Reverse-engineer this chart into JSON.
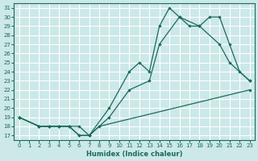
{
  "xlabel": "Humidex (Indice chaleur)",
  "ylabel": "",
  "bg_color": "#cce8e8",
  "grid_color": "#ffffff",
  "line_color": "#1a6b5a",
  "xlim": [
    -0.5,
    23.5
  ],
  "ylim": [
    16.5,
    31.5
  ],
  "xticks": [
    0,
    1,
    2,
    3,
    4,
    5,
    6,
    7,
    8,
    9,
    10,
    11,
    12,
    13,
    14,
    15,
    16,
    17,
    18,
    19,
    20,
    21,
    22,
    23
  ],
  "yticks": [
    17,
    18,
    19,
    20,
    21,
    22,
    23,
    24,
    25,
    26,
    27,
    28,
    29,
    30,
    31
  ],
  "line1_x": [
    0,
    2,
    3,
    4,
    5,
    6,
    7,
    8,
    23
  ],
  "line1_y": [
    19,
    18,
    18,
    18,
    18,
    17,
    17,
    18,
    22
  ],
  "line2_x": [
    0,
    2,
    3,
    4,
    5,
    6,
    7,
    9,
    11,
    13,
    14,
    16,
    18,
    20,
    21,
    23
  ],
  "line2_y": [
    19,
    18,
    18,
    18,
    18,
    18,
    17,
    19,
    22,
    23,
    27,
    30,
    29,
    27,
    25,
    23
  ],
  "line3_x": [
    0,
    2,
    3,
    4,
    5,
    6,
    7,
    9,
    11,
    12,
    13,
    14,
    15,
    16,
    17,
    18,
    19,
    20,
    21,
    22,
    23
  ],
  "line3_y": [
    19,
    18,
    18,
    18,
    18,
    17,
    17,
    20,
    24,
    25,
    24,
    29,
    31,
    30,
    29,
    29,
    30,
    30,
    27,
    24,
    23
  ]
}
